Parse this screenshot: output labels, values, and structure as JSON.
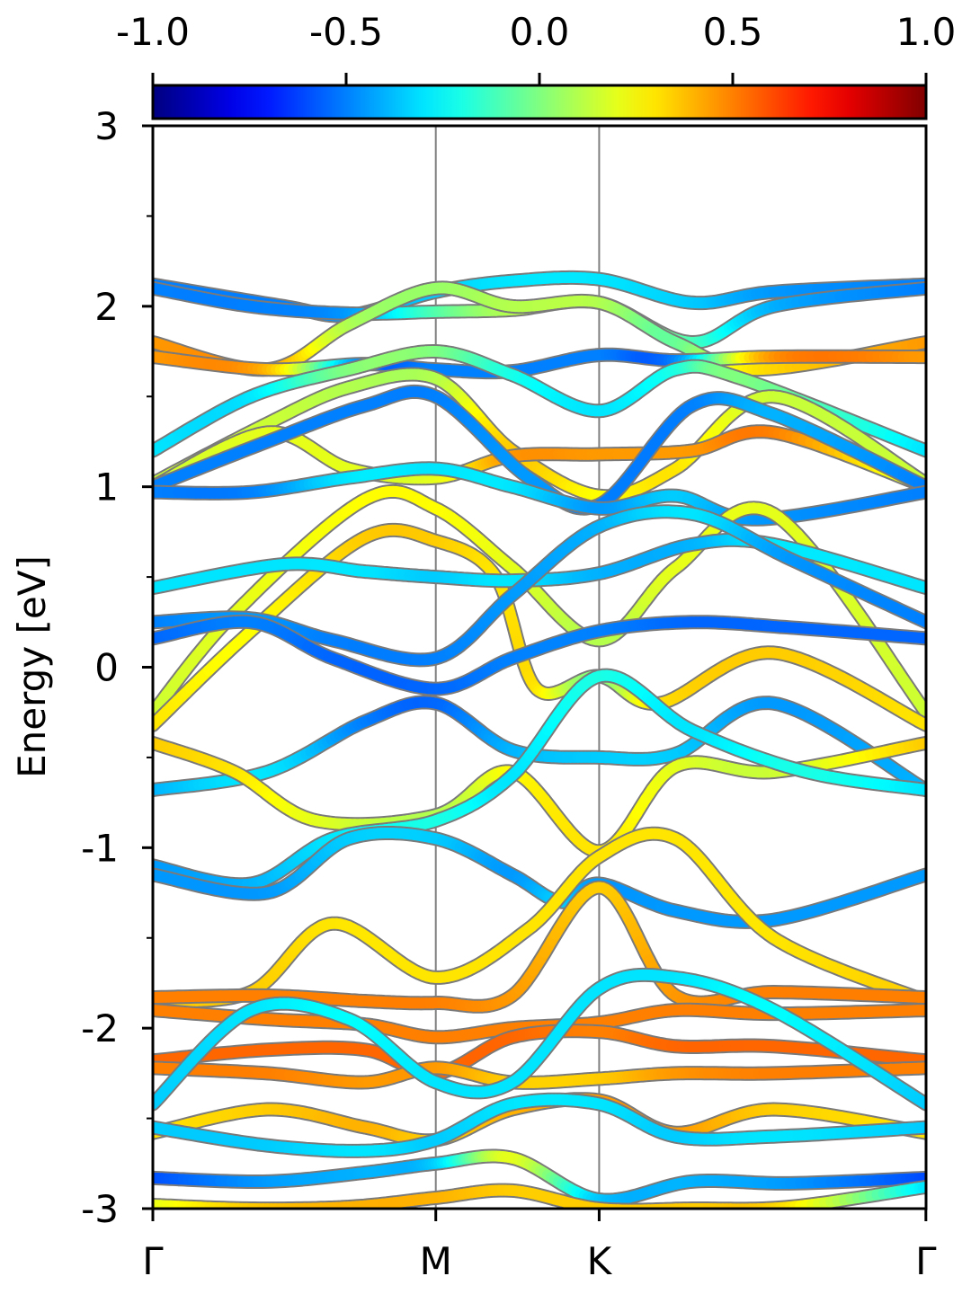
{
  "chart_data": {
    "type": "line",
    "title": "",
    "xlabel": "",
    "ylabel": "Energy [eV]",
    "ylim": [
      -3,
      3
    ],
    "y_ticks": [
      -3,
      -2,
      -1,
      0,
      1,
      2,
      3
    ],
    "y_tick_labels": [
      "-3",
      "-2",
      "-1",
      "0",
      "1",
      "2",
      "3"
    ],
    "y_minor_ticks": [
      -2.5,
      -1.5,
      -0.5,
      0.5,
      1.5,
      2.5
    ],
    "x_range": [
      0,
      4.733
    ],
    "kpoint_positions": [
      0,
      1.732,
      2.732,
      4.732
    ],
    "kpoint_labels": [
      "Γ",
      "M",
      "K",
      "Γ"
    ],
    "grid": false,
    "colorbar": {
      "colormap": "jet",
      "range": [
        -1.0,
        1.0
      ],
      "ticks": [
        -1.0,
        -0.5,
        0.0,
        0.5,
        1.0
      ],
      "tick_labels": [
        "-1.0",
        "-0.5",
        "0.0",
        "0.5",
        "1.0"
      ],
      "placement": "top"
    },
    "colors": {
      "divider": "#808080",
      "band_outline": "#7a7a7a",
      "frame": "#000000"
    },
    "series": [
      {
        "x": [
          0,
          0.8,
          1.2,
          1.732,
          2.2,
          2.732,
          3.3,
          3.8,
          4.733
        ],
        "y": [
          2.12,
          2.0,
          1.95,
          2.08,
          2.14,
          2.15,
          2.02,
          2.08,
          2.12
        ],
        "w": [
          -0.5,
          -0.5,
          -0.45,
          -0.35,
          -0.3,
          -0.3,
          -0.35,
          -0.45,
          -0.5
        ]
      },
      {
        "x": [
          0,
          0.6,
          1.2,
          1.732,
          2.2,
          2.732,
          3.3,
          3.8,
          4.733
        ],
        "y": [
          2.1,
          2.0,
          1.96,
          1.97,
          1.98,
          2.02,
          1.8,
          2.0,
          2.1
        ],
        "w": [
          -0.5,
          -0.5,
          -0.45,
          -0.1,
          0.1,
          0.1,
          -0.1,
          -0.4,
          -0.5
        ]
      },
      {
        "x": [
          0,
          0.7,
          1.2,
          1.732,
          2.2,
          2.732,
          3.2,
          3.7,
          4.733
        ],
        "y": [
          1.8,
          1.65,
          1.9,
          2.1,
          2.0,
          2.02,
          1.8,
          1.65,
          1.8
        ],
        "w": [
          0.45,
          0.45,
          0.1,
          0.05,
          0.1,
          0.1,
          -0.05,
          0.3,
          0.45
        ]
      },
      {
        "x": [
          0,
          0.7,
          1.3,
          1.732,
          2.2,
          2.732,
          3.2,
          3.8,
          4.733
        ],
        "y": [
          1.72,
          1.65,
          1.68,
          1.65,
          1.64,
          1.73,
          1.7,
          1.72,
          1.72
        ],
        "w": [
          0.45,
          0.4,
          -0.5,
          -0.5,
          -0.5,
          -0.5,
          -0.5,
          0.45,
          0.45
        ]
      },
      {
        "x": [
          0,
          0.6,
          1.2,
          1.732,
          2.2,
          2.732,
          3.2,
          3.6,
          4.733
        ],
        "y": [
          1.2,
          1.5,
          1.65,
          1.75,
          1.62,
          1.42,
          1.65,
          1.6,
          1.2
        ],
        "w": [
          -0.3,
          -0.3,
          0.0,
          0.0,
          -0.2,
          -0.3,
          -0.2,
          0.0,
          -0.3
        ]
      },
      {
        "x": [
          0,
          0.7,
          1.2,
          1.732,
          2.2,
          2.732,
          3.2,
          3.8,
          4.733
        ],
        "y": [
          1.02,
          1.35,
          1.55,
          1.6,
          1.2,
          0.95,
          1.1,
          1.5,
          1.02
        ],
        "w": [
          0.15,
          0.15,
          0.1,
          0.1,
          0.35,
          0.25,
          0.3,
          0.15,
          0.15
        ]
      },
      {
        "x": [
          0,
          0.7,
          1.2,
          1.732,
          2.2,
          2.732,
          3.3,
          3.8,
          4.733
        ],
        "y": [
          1.0,
          1.3,
          1.1,
          1.05,
          1.17,
          1.18,
          1.2,
          1.3,
          1.0
        ],
        "w": [
          0.15,
          0.2,
          0.2,
          0.2,
          0.45,
          0.45,
          0.45,
          0.5,
          0.15
        ]
      },
      {
        "x": [
          0,
          0.7,
          1.3,
          1.732,
          2.3,
          2.732,
          3.3,
          3.8,
          4.733
        ],
        "y": [
          1.0,
          1.25,
          1.45,
          1.5,
          1.05,
          0.9,
          1.45,
          1.4,
          1.0
        ],
        "w": [
          -0.5,
          -0.5,
          -0.5,
          -0.5,
          -0.45,
          -0.5,
          -0.5,
          -0.4,
          -0.5
        ]
      },
      {
        "x": [
          0,
          0.6,
          1.2,
          1.732,
          2.2,
          2.732,
          3.2,
          3.7,
          4.733
        ],
        "y": [
          0.97,
          0.97,
          1.05,
          1.1,
          1.0,
          0.88,
          0.95,
          0.82,
          0.97
        ],
        "w": [
          -0.5,
          -0.5,
          -0.3,
          -0.3,
          -0.3,
          -0.45,
          -0.35,
          -0.45,
          -0.5
        ]
      },
      {
        "x": [
          0,
          0.5,
          1.3,
          1.732,
          2.2,
          2.732,
          3.2,
          3.8,
          4.733
        ],
        "y": [
          -0.25,
          0.3,
          0.93,
          0.88,
          0.55,
          0.15,
          0.55,
          0.85,
          -0.25
        ],
        "w": [
          0.15,
          0.2,
          0.25,
          0.25,
          0.2,
          0.1,
          0.2,
          0.2,
          0.15
        ]
      },
      {
        "x": [
          0,
          0.6,
          1.3,
          1.732,
          2.1,
          2.35,
          2.732,
          3.1,
          3.8,
          4.733
        ],
        "y": [
          -0.32,
          0.2,
          0.72,
          0.7,
          0.5,
          -0.12,
          -0.05,
          -0.2,
          0.08,
          -0.32
        ],
        "w": [
          0.3,
          0.25,
          0.35,
          0.35,
          0.3,
          0.3,
          0.0,
          0.3,
          0.35,
          0.3
        ]
      },
      {
        "x": [
          0,
          0.8,
          1.3,
          1.732,
          2.2,
          2.732,
          3.3,
          3.8,
          4.733
        ],
        "y": [
          0.44,
          0.57,
          0.53,
          0.5,
          0.48,
          0.52,
          0.68,
          0.68,
          0.44
        ],
        "w": [
          -0.3,
          -0.3,
          -0.3,
          -0.35,
          -0.3,
          -0.4,
          -0.4,
          -0.3,
          -0.3
        ]
      },
      {
        "x": [
          0,
          0.6,
          1.1,
          1.732,
          2.2,
          2.732,
          3.3,
          3.9,
          4.733
        ],
        "y": [
          0.25,
          0.27,
          0.15,
          0.05,
          0.4,
          0.78,
          0.85,
          0.6,
          0.25
        ],
        "w": [
          -0.5,
          -0.45,
          -0.5,
          -0.5,
          -0.45,
          -0.4,
          -0.3,
          -0.45,
          -0.5
        ]
      },
      {
        "x": [
          0,
          0.6,
          1.1,
          1.732,
          2.2,
          2.732,
          3.3,
          3.9,
          4.733
        ],
        "y": [
          0.16,
          0.25,
          0.05,
          -0.12,
          0.05,
          0.2,
          0.25,
          0.22,
          0.16
        ],
        "w": [
          -0.55,
          -0.5,
          -0.55,
          -0.55,
          -0.5,
          -0.5,
          -0.55,
          -0.55,
          -0.55
        ]
      },
      {
        "x": [
          0,
          0.7,
          1.3,
          1.732,
          2.2,
          2.732,
          3.2,
          3.8,
          4.733
        ],
        "y": [
          -0.68,
          -0.58,
          -0.3,
          -0.2,
          -0.46,
          -0.5,
          -0.48,
          -0.2,
          -0.68
        ],
        "w": [
          -0.4,
          -0.3,
          -0.5,
          -0.55,
          -0.4,
          -0.35,
          -0.35,
          -0.45,
          -0.4
        ]
      },
      {
        "x": [
          0,
          0.5,
          1.0,
          1.732,
          2.2,
          2.732,
          3.2,
          3.8,
          4.733
        ],
        "y": [
          -0.42,
          -0.58,
          -0.85,
          -0.82,
          -0.58,
          -1.02,
          -0.55,
          -0.58,
          -0.42
        ],
        "w": [
          0.35,
          0.3,
          0.2,
          0.1,
          0.25,
          0.3,
          0.2,
          0.15,
          0.35
        ]
      },
      {
        "x": [
          0,
          0.6,
          1.1,
          1.732,
          2.2,
          2.732,
          3.3,
          4.0,
          4.733
        ],
        "y": [
          -1.1,
          -1.2,
          -0.95,
          -0.85,
          -0.6,
          -0.05,
          -0.35,
          -0.58,
          -0.68
        ],
        "w": [
          -0.45,
          -0.4,
          -0.3,
          -0.2,
          -0.3,
          -0.2,
          -0.3,
          -0.2,
          -0.3
        ]
      },
      {
        "x": [
          0,
          0.7,
          1.2,
          1.732,
          2.2,
          2.5,
          2.732,
          3.2,
          3.8,
          4.733
        ],
        "y": [
          -1.15,
          -1.25,
          -0.95,
          -0.95,
          -1.15,
          -1.3,
          -1.2,
          -1.35,
          -1.4,
          -1.15
        ],
        "w": [
          -0.45,
          -0.45,
          -0.35,
          -0.35,
          -0.45,
          -0.35,
          -0.45,
          -0.45,
          -0.45,
          -0.45
        ]
      },
      {
        "x": [
          0,
          0.6,
          1.1,
          1.732,
          2.3,
          2.732,
          3.2,
          3.8,
          4.733
        ],
        "y": [
          -1.85,
          -1.8,
          -1.42,
          -1.72,
          -1.45,
          -1.05,
          -0.95,
          -1.5,
          -1.85
        ],
        "w": [
          0.35,
          0.35,
          0.3,
          0.3,
          0.3,
          0.3,
          0.3,
          0.3,
          0.35
        ]
      },
      {
        "x": [
          0,
          0.7,
          1.3,
          1.732,
          2.2,
          2.732,
          3.2,
          3.8,
          4.733
        ],
        "y": [
          -1.83,
          -1.82,
          -1.85,
          -1.86,
          -1.82,
          -1.22,
          -1.82,
          -1.8,
          -1.83
        ],
        "w": [
          0.5,
          0.5,
          0.5,
          0.5,
          0.45,
          0.35,
          0.45,
          0.5,
          0.5
        ]
      },
      {
        "x": [
          0,
          0.7,
          1.3,
          1.732,
          2.2,
          2.732,
          3.2,
          3.8,
          4.733
        ],
        "y": [
          -1.9,
          -1.95,
          -1.98,
          -2.05,
          -2.0,
          -1.97,
          -1.9,
          -1.92,
          -1.9
        ],
        "w": [
          0.5,
          0.5,
          0.5,
          0.5,
          0.5,
          0.5,
          0.5,
          0.5,
          0.5
        ]
      },
      {
        "x": [
          0,
          0.7,
          1.3,
          1.732,
          2.2,
          2.732,
          3.2,
          3.8,
          4.733
        ],
        "y": [
          -2.18,
          -2.12,
          -2.12,
          -2.25,
          -2.05,
          -2.02,
          -2.1,
          -2.1,
          -2.18
        ],
        "w": [
          0.55,
          0.55,
          0.55,
          0.55,
          0.55,
          0.5,
          0.55,
          0.55,
          0.55
        ]
      },
      {
        "x": [
          0,
          0.7,
          1.3,
          1.732,
          2.2,
          2.732,
          3.2,
          3.8,
          4.733
        ],
        "y": [
          -2.22,
          -2.25,
          -2.3,
          -2.22,
          -2.3,
          -2.28,
          -2.25,
          -2.25,
          -2.22
        ],
        "w": [
          0.5,
          0.5,
          0.45,
          0.45,
          0.35,
          0.35,
          0.45,
          0.5,
          0.5
        ]
      },
      {
        "x": [
          0,
          0.6,
          1.2,
          1.732,
          2.2,
          2.732,
          3.2,
          3.8,
          4.733
        ],
        "y": [
          -2.42,
          -1.9,
          -1.95,
          -2.3,
          -2.3,
          -1.78,
          -1.72,
          -1.9,
          -2.42
        ],
        "w": [
          -0.35,
          -0.3,
          -0.25,
          -0.3,
          -0.3,
          -0.3,
          -0.3,
          -0.25,
          -0.35
        ]
      },
      {
        "x": [
          0,
          0.7,
          1.3,
          1.732,
          2.2,
          2.732,
          3.2,
          3.8,
          4.733
        ],
        "y": [
          -2.58,
          -2.45,
          -2.55,
          -2.62,
          -2.45,
          -2.4,
          -2.58,
          -2.45,
          -2.58
        ],
        "w": [
          0.3,
          0.35,
          0.4,
          0.35,
          0.4,
          0.45,
          0.45,
          0.35,
          0.3
        ]
      },
      {
        "x": [
          0,
          0.7,
          1.3,
          1.732,
          2.2,
          2.732,
          3.2,
          3.8,
          4.733
        ],
        "y": [
          -2.55,
          -2.65,
          -2.68,
          -2.62,
          -2.42,
          -2.42,
          -2.6,
          -2.6,
          -2.55
        ],
        "w": [
          -0.35,
          -0.35,
          -0.3,
          -0.35,
          -0.3,
          -0.3,
          -0.35,
          -0.3,
          -0.35
        ]
      },
      {
        "x": [
          0,
          0.7,
          1.3,
          1.732,
          2.2,
          2.732,
          3.3,
          3.9,
          4.733
        ],
        "y": [
          -2.83,
          -2.85,
          -2.8,
          -2.75,
          -2.72,
          -2.95,
          -2.85,
          -2.86,
          -2.83
        ],
        "w": [
          -0.6,
          -0.45,
          -0.4,
          -0.35,
          0.2,
          -0.35,
          -0.4,
          -0.45,
          -0.6
        ]
      },
      {
        "x": [
          0,
          0.6,
          1.2,
          1.732,
          2.2,
          2.732,
          3.3,
          3.9,
          4.733
        ],
        "y": [
          -2.98,
          -3.0,
          -2.99,
          -2.94,
          -2.9,
          -3.0,
          -3.0,
          -2.99,
          -2.88
        ],
        "w": [
          0.2,
          0.35,
          0.4,
          0.4,
          0.35,
          0.35,
          0.35,
          0.3,
          -0.3
        ]
      }
    ]
  }
}
